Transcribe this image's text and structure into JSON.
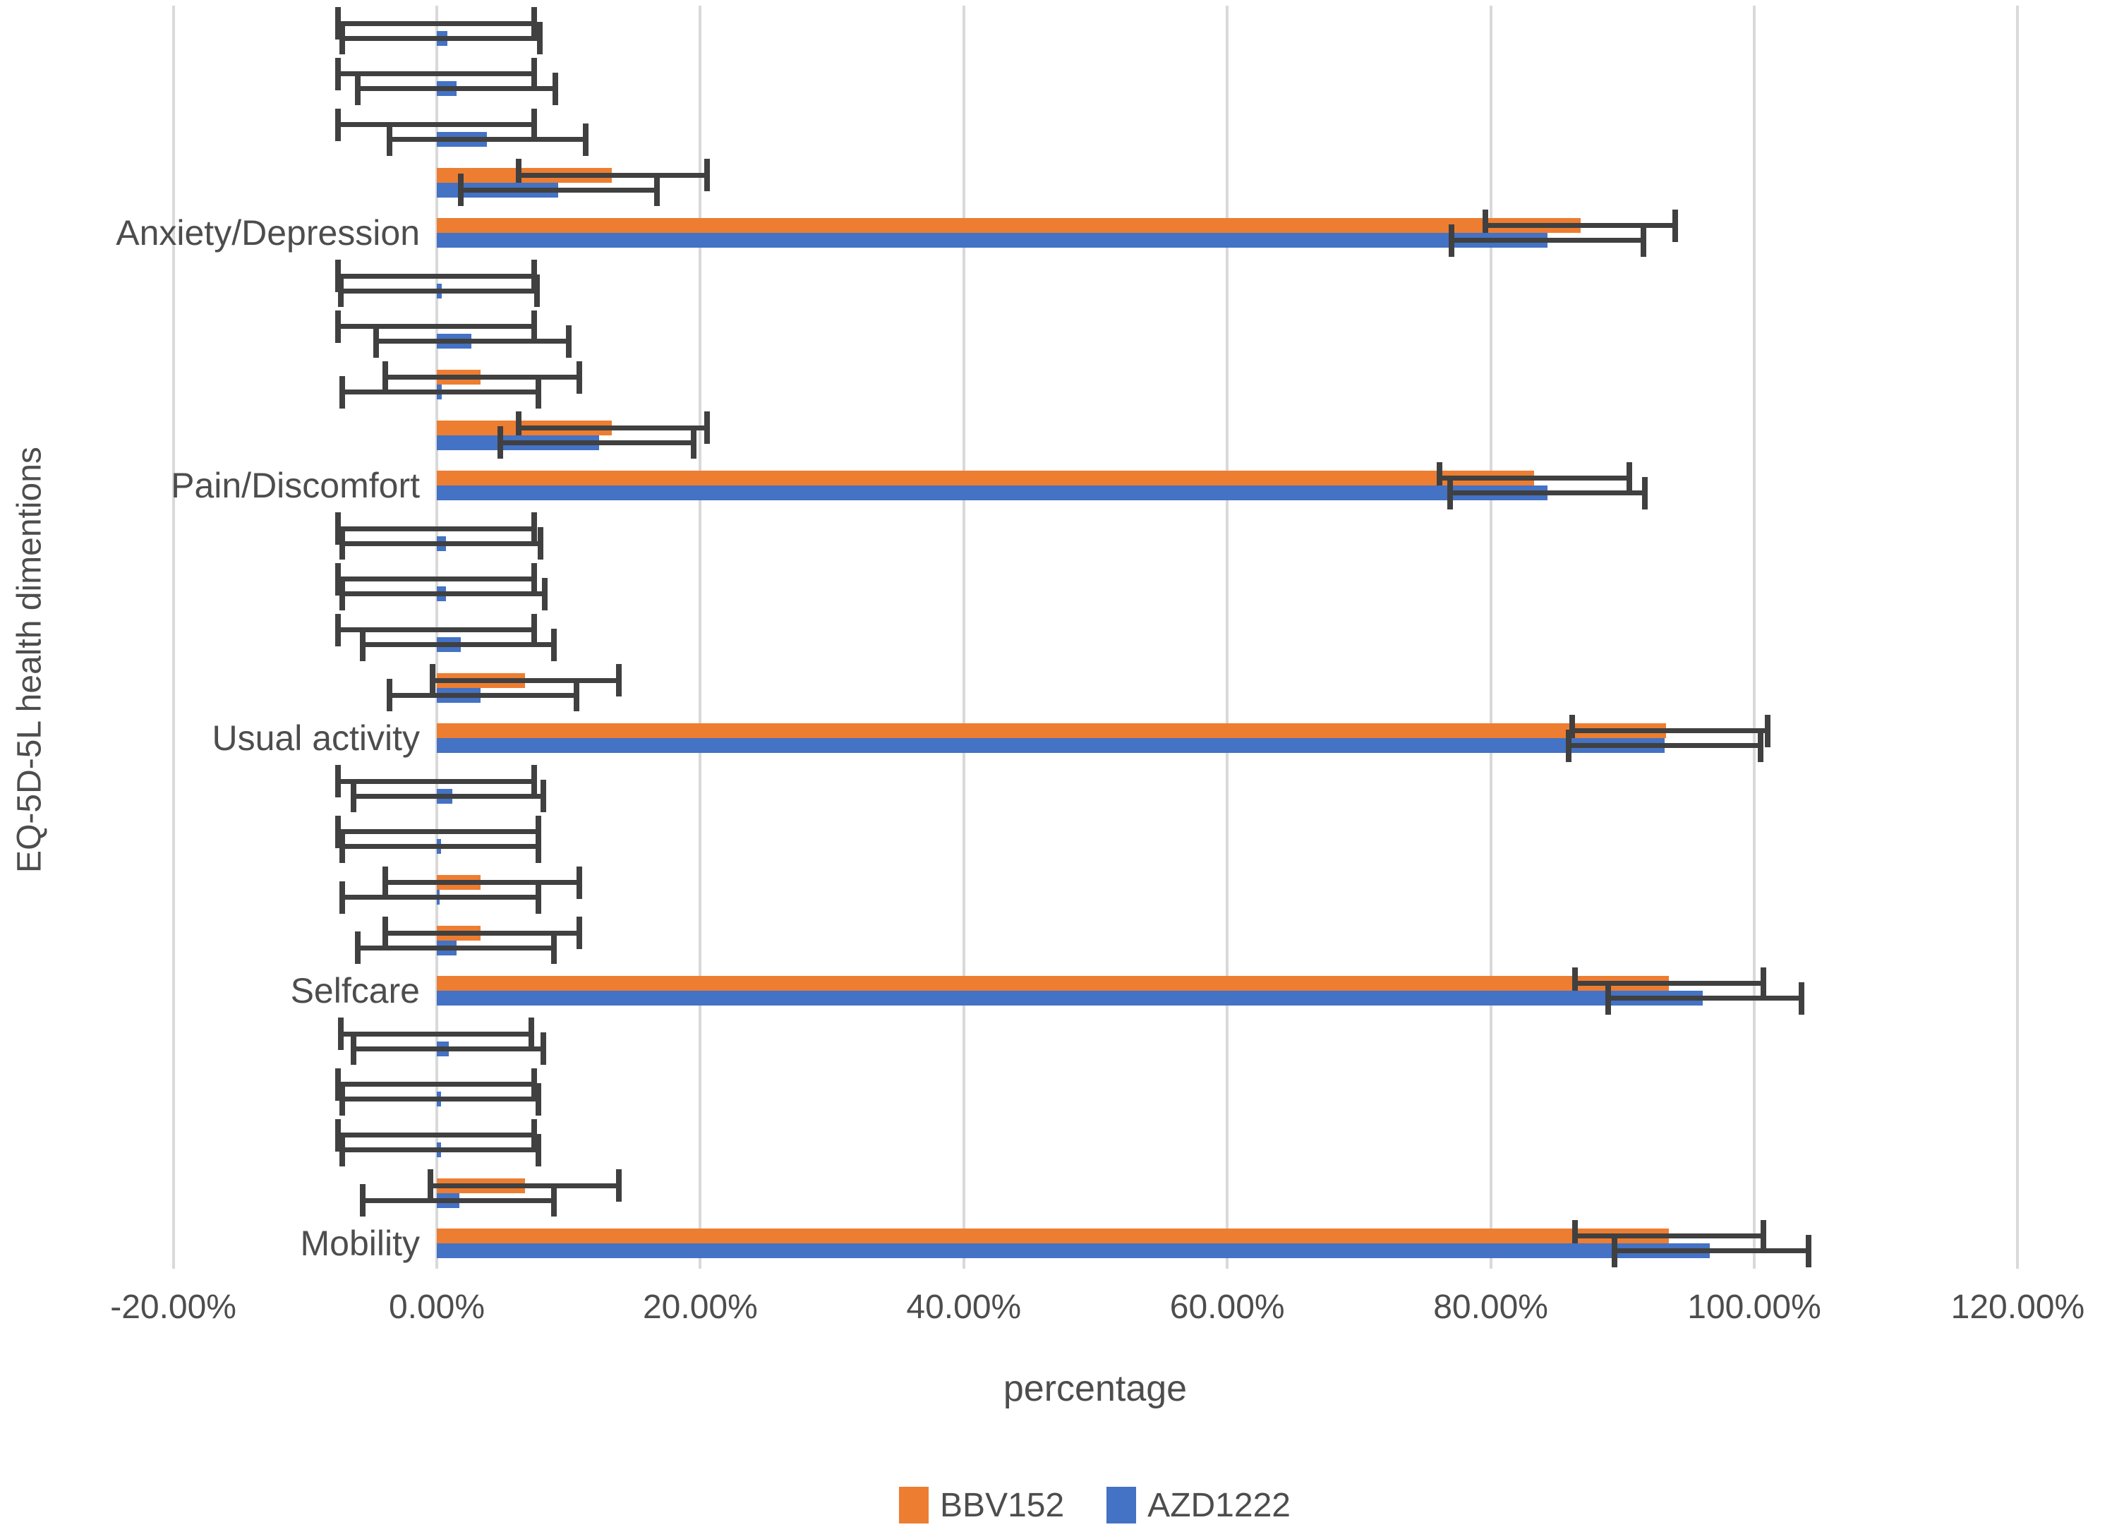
{
  "chart_data": {
    "type": "bar",
    "orientation": "horizontal",
    "title": "",
    "xlabel": "percentage",
    "ylabel": "EQ-5D-5L health dimentions",
    "grid": true,
    "legend_position": "bottom",
    "x_axis": {
      "min": -20,
      "max": 120,
      "step": 20,
      "ticks": [
        {
          "value": -20,
          "label": "-20.00%"
        },
        {
          "value": 0,
          "label": "0.00%"
        },
        {
          "value": 20,
          "label": "20.00%"
        },
        {
          "value": 40,
          "label": "40.00%"
        },
        {
          "value": 60,
          "label": "60.00%"
        },
        {
          "value": 80,
          "label": "80.00%"
        },
        {
          "value": 100,
          "label": "100.00%"
        },
        {
          "value": 120,
          "label": "120.00%"
        }
      ]
    },
    "legend": [
      {
        "label": "BBV152",
        "color": "#ED7D31"
      },
      {
        "label": "AZD1222",
        "color": "#4472C4"
      }
    ],
    "colors": {
      "bbv152": "#ED7D31",
      "azd1222": "#4472C4",
      "error_bar": "#404040",
      "gridline": "#D9D9D9",
      "text": "#4D4D4D"
    },
    "note": "Each dimension group shows 5 response-level rows (level 5 at top to level 1 at bottom); each row pairs a BBV152 bar (top, orange) with an AZD1222 bar (bottom, blue), with 95% CI error bars. Values in percent.",
    "groups": [
      {
        "label": "Anxiety/Depression",
        "rows": [
          {
            "bbv152": {
              "value": 0,
              "ci_low": -7.5,
              "ci_high": 7.4
            },
            "azd1222": {
              "value": 0.8,
              "ci_low": -7.2,
              "ci_high": 7.8
            }
          },
          {
            "bbv152": {
              "value": 0,
              "ci_low": -7.5,
              "ci_high": 7.4
            },
            "azd1222": {
              "value": 1.5,
              "ci_low": -6.0,
              "ci_high": 9.0
            }
          },
          {
            "bbv152": {
              "value": 0,
              "ci_low": -7.5,
              "ci_high": 7.4
            },
            "azd1222": {
              "value": 3.8,
              "ci_low": -3.6,
              "ci_high": 11.3
            }
          },
          {
            "bbv152": {
              "value": 13.3,
              "ci_low": 6.2,
              "ci_high": 20.5
            },
            "azd1222": {
              "value": 9.2,
              "ci_low": 1.8,
              "ci_high": 16.7
            }
          },
          {
            "bbv152": {
              "value": 86.8,
              "ci_low": 79.6,
              "ci_high": 94.0
            },
            "azd1222": {
              "value": 84.3,
              "ci_low": 77.0,
              "ci_high": 91.6
            }
          }
        ]
      },
      {
        "label": "Pain/Discomfort",
        "rows": [
          {
            "bbv152": {
              "value": 0,
              "ci_low": -7.5,
              "ci_high": 7.4
            },
            "azd1222": {
              "value": 0.4,
              "ci_low": -7.3,
              "ci_high": 7.6
            }
          },
          {
            "bbv152": {
              "value": 0,
              "ci_low": -7.5,
              "ci_high": 7.4
            },
            "azd1222": {
              "value": 2.6,
              "ci_low": -4.6,
              "ci_high": 10.0
            }
          },
          {
            "bbv152": {
              "value": 3.3,
              "ci_low": -3.9,
              "ci_high": 10.8
            },
            "azd1222": {
              "value": 0.4,
              "ci_low": -7.2,
              "ci_high": 7.7
            }
          },
          {
            "bbv152": {
              "value": 13.3,
              "ci_low": 6.2,
              "ci_high": 20.5
            },
            "azd1222": {
              "value": 12.3,
              "ci_low": 4.8,
              "ci_high": 19.5
            }
          },
          {
            "bbv152": {
              "value": 83.3,
              "ci_low": 76.1,
              "ci_high": 90.5
            },
            "azd1222": {
              "value": 84.3,
              "ci_low": 76.9,
              "ci_high": 91.7
            }
          }
        ]
      },
      {
        "label": "Usual activity",
        "rows": [
          {
            "bbv152": {
              "value": 0,
              "ci_low": -7.5,
              "ci_high": 7.4
            },
            "azd1222": {
              "value": 0.7,
              "ci_low": -7.2,
              "ci_high": 7.9
            }
          },
          {
            "bbv152": {
              "value": 0,
              "ci_low": -7.5,
              "ci_high": 7.4
            },
            "azd1222": {
              "value": 0.7,
              "ci_low": -7.2,
              "ci_high": 8.2
            }
          },
          {
            "bbv152": {
              "value": 0,
              "ci_low": -7.5,
              "ci_high": 7.4
            },
            "azd1222": {
              "value": 1.8,
              "ci_low": -5.6,
              "ci_high": 8.9
            }
          },
          {
            "bbv152": {
              "value": 6.7,
              "ci_low": -0.3,
              "ci_high": 13.8
            },
            "azd1222": {
              "value": 3.3,
              "ci_low": -3.6,
              "ci_high": 10.6
            }
          },
          {
            "bbv152": {
              "value": 93.3,
              "ci_low": 86.2,
              "ci_high": 101.0
            },
            "azd1222": {
              "value": 93.2,
              "ci_low": 85.9,
              "ci_high": 100.5
            }
          }
        ]
      },
      {
        "label": "Selfcare",
        "rows": [
          {
            "bbv152": {
              "value": 0,
              "ci_low": -7.5,
              "ci_high": 7.4
            },
            "azd1222": {
              "value": 1.2,
              "ci_low": -6.3,
              "ci_high": 8.1
            }
          },
          {
            "bbv152": {
              "value": 0,
              "ci_low": -7.5,
              "ci_high": 7.7
            },
            "azd1222": {
              "value": 0.3,
              "ci_low": -7.2,
              "ci_high": 7.7
            }
          },
          {
            "bbv152": {
              "value": 3.3,
              "ci_low": -3.9,
              "ci_high": 10.8
            },
            "azd1222": {
              "value": 0.2,
              "ci_low": -7.2,
              "ci_high": 7.7
            }
          },
          {
            "bbv152": {
              "value": 3.3,
              "ci_low": -3.9,
              "ci_high": 10.8
            },
            "azd1222": {
              "value": 1.5,
              "ci_low": -6.0,
              "ci_high": 8.9
            }
          },
          {
            "bbv152": {
              "value": 93.5,
              "ci_low": 86.4,
              "ci_high": 100.7
            },
            "azd1222": {
              "value": 96.1,
              "ci_low": 88.9,
              "ci_high": 103.6
            }
          }
        ]
      },
      {
        "label": "Mobility",
        "rows": [
          {
            "bbv152": {
              "value": 0,
              "ci_low": -7.3,
              "ci_high": 7.2
            },
            "azd1222": {
              "value": 0.9,
              "ci_low": -6.3,
              "ci_high": 8.1
            }
          },
          {
            "bbv152": {
              "value": 0,
              "ci_low": -7.5,
              "ci_high": 7.4
            },
            "azd1222": {
              "value": 0.3,
              "ci_low": -7.2,
              "ci_high": 7.7
            }
          },
          {
            "bbv152": {
              "value": 0,
              "ci_low": -7.5,
              "ci_high": 7.4
            },
            "azd1222": {
              "value": 0.3,
              "ci_low": -7.2,
              "ci_high": 7.7
            }
          },
          {
            "bbv152": {
              "value": 6.7,
              "ci_low": -0.5,
              "ci_high": 13.8
            },
            "azd1222": {
              "value": 1.7,
              "ci_low": -5.6,
              "ci_high": 8.9
            }
          },
          {
            "bbv152": {
              "value": 93.5,
              "ci_low": 86.4,
              "ci_high": 100.7
            },
            "azd1222": {
              "value": 96.6,
              "ci_low": 89.4,
              "ci_high": 104.1
            }
          }
        ]
      }
    ]
  }
}
